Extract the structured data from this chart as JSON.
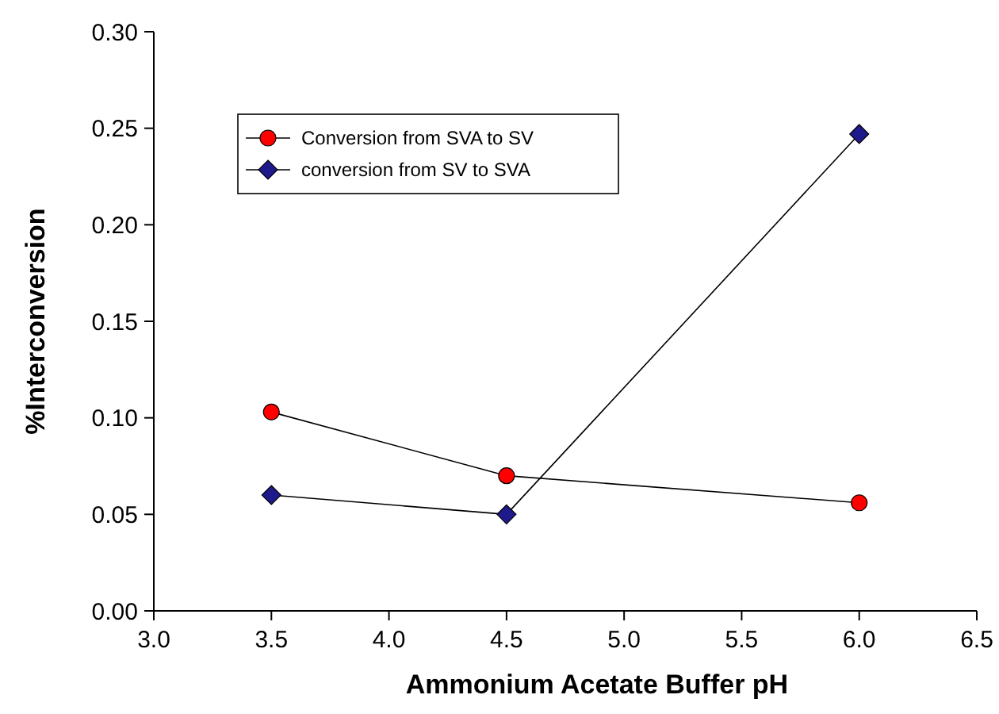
{
  "chart_data": {
    "type": "line",
    "xlabel": "Ammonium Acetate Buffer pH",
    "ylabel": "%Interconversion",
    "x": [
      3.5,
      4.5,
      6.0
    ],
    "series": [
      {
        "name": "Conversion from SVA to SV",
        "color": "#ff0000",
        "marker": "circle",
        "values": [
          0.103,
          0.07,
          0.056
        ]
      },
      {
        "name": "conversion from SV to SVA",
        "color": "#1f1a8c",
        "marker": "diamond",
        "values": [
          0.06,
          0.05,
          0.247
        ]
      }
    ],
    "xlim": [
      3.0,
      6.5
    ],
    "xticks": [
      {
        "value": 3.0,
        "label": "3.0"
      },
      {
        "value": 3.5,
        "label": "3.5"
      },
      {
        "value": 4.0,
        "label": "4.0"
      },
      {
        "value": 4.5,
        "label": "4.5"
      },
      {
        "value": 5.0,
        "label": "5.0"
      },
      {
        "value": 5.5,
        "label": "5.5"
      },
      {
        "value": 6.0,
        "label": "6.0"
      },
      {
        "value": 6.5,
        "label": "6.5"
      }
    ],
    "ylim": [
      0,
      0.3
    ],
    "yticks": [
      {
        "value": 0,
        "label": "0.00"
      },
      {
        "value": 0.05,
        "label": "0.05"
      },
      {
        "value": 0.1,
        "label": "0.10"
      },
      {
        "value": 0.15,
        "label": "0.15"
      },
      {
        "value": 0.2,
        "label": "0.20"
      },
      {
        "value": 0.25,
        "label": "0.25"
      },
      {
        "value": 0.3,
        "label": "0.30"
      }
    ],
    "grid": false,
    "legend": "top left",
    "line_style": "solid"
  }
}
